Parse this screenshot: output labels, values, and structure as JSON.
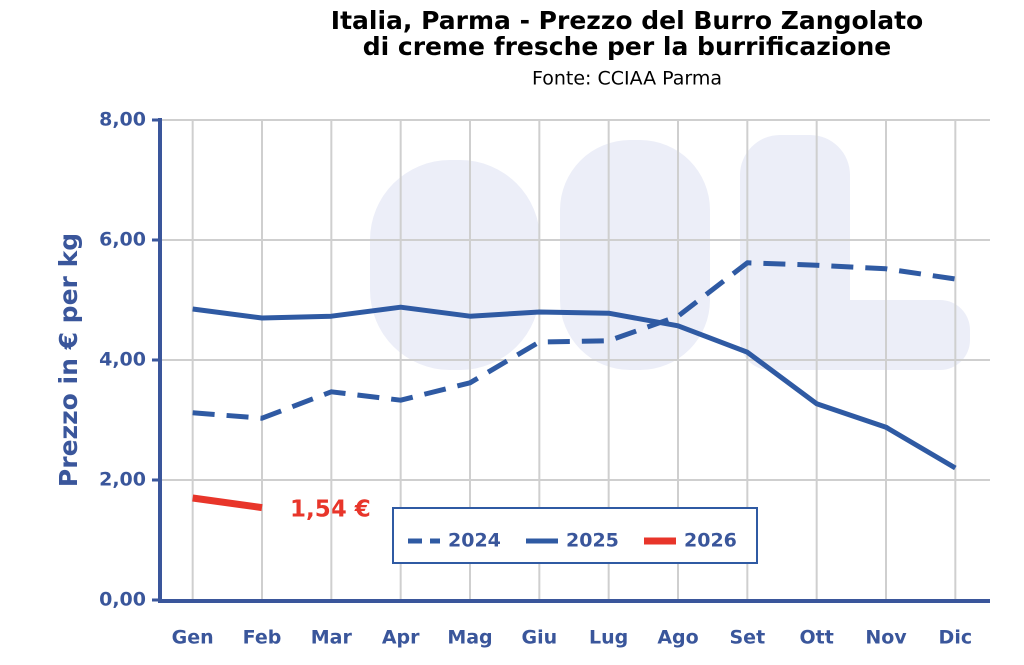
{
  "chart_data": {
    "type": "line",
    "title": "Italia, Parma - Prezzo del Burro Zangolato",
    "subtitle": "di creme fresche per la burrificazione",
    "source": "Fonte: CCIAA Parma",
    "y_label": "Prezzo in € per kg",
    "annotation": "1,54 €",
    "categories": [
      "Gen",
      "Feb",
      "Mar",
      "Apr",
      "Mag",
      "Giu",
      "Lug",
      "Ago",
      "Set",
      "Ott",
      "Nov",
      "Dic"
    ],
    "series": [
      {
        "name": "2024",
        "color": "#2f5aa3",
        "dashed": true,
        "values": [
          3.12,
          3.03,
          3.47,
          3.33,
          3.62,
          4.3,
          4.32,
          4.73,
          5.62,
          5.58,
          5.52,
          5.35
        ]
      },
      {
        "name": "2025",
        "color": "#2f5aa3",
        "dashed": false,
        "values": [
          4.85,
          4.7,
          4.73,
          4.88,
          4.73,
          4.8,
          4.78,
          4.57,
          4.13,
          3.27,
          2.88,
          2.2
        ]
      },
      {
        "name": "2026",
        "color": "#e8352a",
        "dashed": false,
        "values": [
          1.7,
          1.54,
          null,
          null,
          null,
          null,
          null,
          null,
          null,
          null,
          null,
          null
        ]
      }
    ],
    "ylim": [
      0,
      8
    ],
    "yticks": [
      {
        "value": 0,
        "label": "0,00"
      },
      {
        "value": 2,
        "label": "2,00"
      },
      {
        "value": 4,
        "label": "4,00"
      },
      {
        "value": 6,
        "label": "6,00"
      },
      {
        "value": 8,
        "label": "8,00"
      }
    ],
    "grid": true
  }
}
